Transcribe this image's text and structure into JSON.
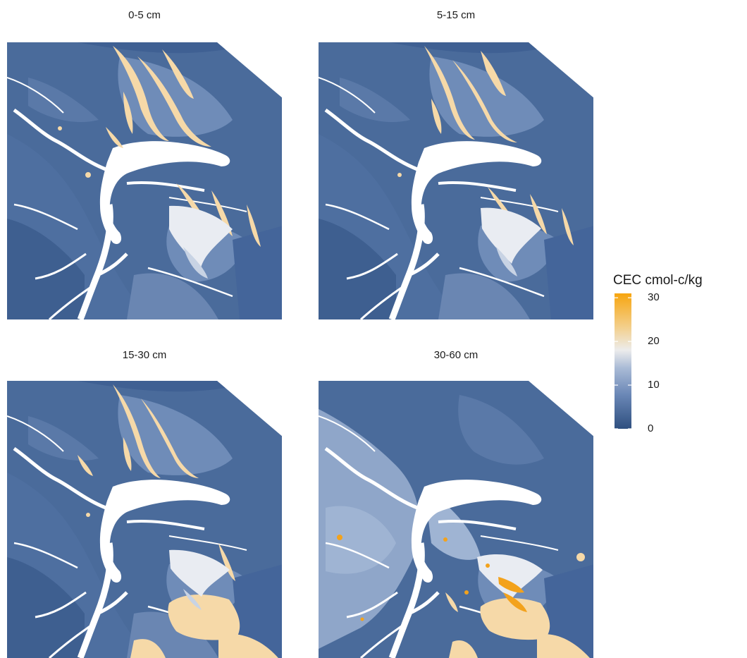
{
  "panels": [
    {
      "title": "0-5 cm"
    },
    {
      "title": "5-15 cm"
    },
    {
      "title": "15-30 cm"
    },
    {
      "title": "30-60 cm"
    }
  ],
  "legend": {
    "title": "CEC cmol-c/kg",
    "ticks": [
      {
        "value": 30,
        "label": "30"
      },
      {
        "value": 20,
        "label": "20"
      },
      {
        "value": 10,
        "label": "10"
      },
      {
        "value": 0,
        "label": "0"
      }
    ],
    "range": [
      0,
      31
    ],
    "colors": {
      "low": "#2e4f7f",
      "mid_low": "#8aa3c6",
      "mid": "#ececec",
      "mid_high": "#f6d59a",
      "high": "#f7a50f"
    }
  },
  "colors": {
    "water": "#ffffff",
    "base_dark": "#3e5f90",
    "base": "#4a6b9b",
    "base_light": "#6f8cb8",
    "light_blue": "#9fb4d3",
    "white_zone": "#e9ecf2",
    "cream": "#f6d9a8",
    "orange": "#f3a21c"
  }
}
